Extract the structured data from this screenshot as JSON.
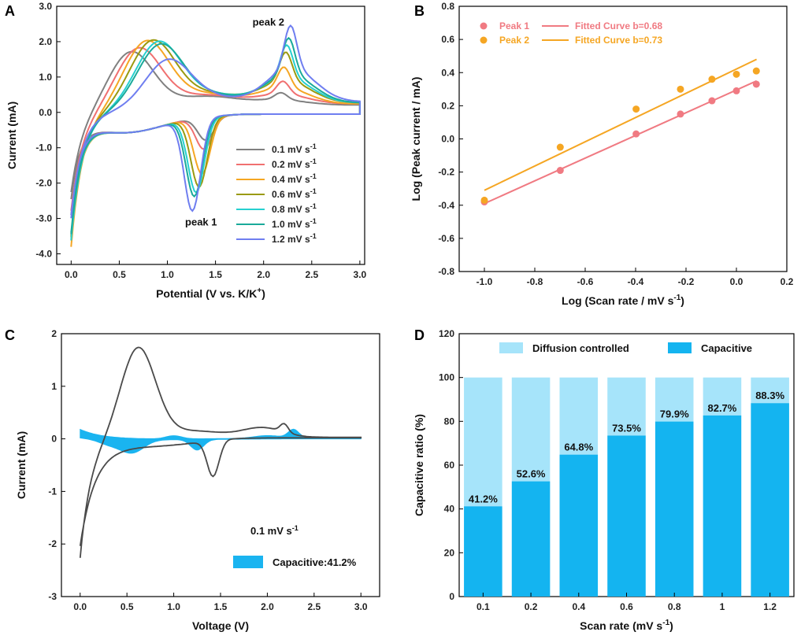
{
  "chart_data": [
    {
      "panel": "A",
      "type": "line",
      "xlabel": "Potential (V vs. K/K",
      "xlabel_sup": "+",
      "xlabel_end": ")",
      "ylabel": "Current (mA)",
      "xlim": [
        -0.15,
        3.05
      ],
      "ylim": [
        -4.3,
        3.0
      ],
      "xticks": [
        0.0,
        0.5,
        1.0,
        1.5,
        2.0,
        2.5,
        3.0
      ],
      "xtick_labels": [
        "0.0",
        "0.5",
        "1.0",
        "1.5",
        "2.0",
        "2.5",
        "3.0"
      ],
      "yticks": [
        -4,
        -3,
        -2,
        -1,
        0,
        1,
        2,
        3
      ],
      "ytick_labels": [
        "-4.0",
        "-3.0",
        "-2.0",
        "-1.0",
        "0.0",
        "1.0",
        "2.0",
        "3.0"
      ],
      "annotations": [
        {
          "text": "peak 2",
          "x": 2.05,
          "y": 2.45
        },
        {
          "text": "peak 1",
          "x": 1.35,
          "y": -3.2
        }
      ],
      "unit_suffix": "mV s",
      "unit_sup": "-1",
      "series": [
        {
          "name": "0.1",
          "color": "#808080",
          "ox": 0.62,
          "oy": 1.65,
          "rx": 1.4,
          "ry": -0.65,
          "ax": 2.18,
          "ay": 0.35,
          "start": -2.3,
          "end": 0.35
        },
        {
          "name": "0.2",
          "color": "#f07070",
          "ox": 0.7,
          "oy": 1.72,
          "rx": 1.38,
          "ry": -0.9,
          "ax": 2.2,
          "ay": 0.65,
          "start": -2.8,
          "end": 0.4
        },
        {
          "name": "0.4",
          "color": "#f5a623",
          "ox": 0.78,
          "oy": 1.88,
          "rx": 1.36,
          "ry": -1.6,
          "ax": 2.21,
          "ay": 1.05,
          "start": -3.8,
          "end": 0.4
        },
        {
          "name": "0.6",
          "color": "#9a9a10",
          "ox": 0.84,
          "oy": 1.85,
          "rx": 1.33,
          "ry": -1.95,
          "ax": 2.23,
          "ay": 1.45,
          "start": -3.5,
          "end": 0.45
        },
        {
          "name": "0.8",
          "color": "#26d0d0",
          "ox": 0.9,
          "oy": 1.78,
          "rx": 1.3,
          "ry": -2.1,
          "ax": 2.24,
          "ay": 1.65,
          "start": -3.6,
          "end": 0.45
        },
        {
          "name": "1.0",
          "color": "#1aaa9a",
          "ox": 0.92,
          "oy": 1.7,
          "rx": 1.28,
          "ry": -2.2,
          "ax": 2.26,
          "ay": 1.85,
          "start": -3.4,
          "end": 0.45
        },
        {
          "name": "1.2",
          "color": "#6f7ef0",
          "ox": 1.0,
          "oy": 1.25,
          "rx": 1.26,
          "ry": -2.6,
          "ax": 2.28,
          "ay": 2.18,
          "start": -2.9,
          "end": 0.5
        }
      ]
    },
    {
      "panel": "B",
      "type": "scatter",
      "xlabel": "Log (Scan rate / mV s",
      "xlabel_sup": "-1",
      "xlabel_end": ")",
      "ylabel": "Log (Peak current / mA)",
      "xlim": [
        -1.1,
        0.2
      ],
      "ylim": [
        -0.8,
        0.8
      ],
      "xticks": [
        -1.0,
        -0.8,
        -0.6,
        -0.4,
        -0.2,
        0.0,
        0.2
      ],
      "xtick_labels": [
        "-1.0",
        "-0.8",
        "-0.6",
        "-0.4",
        "-0.2",
        "0.0",
        "0.2"
      ],
      "yticks": [
        -0.8,
        -0.6,
        -0.4,
        -0.2,
        0.0,
        0.2,
        0.4,
        0.6,
        0.8
      ],
      "ytick_labels": [
        "-0.8",
        "-0.6",
        "-0.4",
        "-0.2",
        "0.0",
        "0.2",
        "0.4",
        "0.6",
        "0.8"
      ],
      "x": [
        -1.0,
        -0.699,
        -0.398,
        -0.222,
        -0.097,
        0.0,
        0.079
      ],
      "series": [
        {
          "name": "Peak 1",
          "fit_label": "Fitted Curve b=0.68",
          "color": "#f07a82",
          "values": [
            -0.38,
            -0.19,
            0.03,
            0.15,
            0.23,
            0.29,
            0.33
          ],
          "fit": [
            [
              -1.0,
              -0.39
            ],
            [
              0.08,
              0.35
            ]
          ]
        },
        {
          "name": "Peak 2",
          "fit_label": "Fitted Curve b=0.73",
          "color": "#f5a623",
          "values": [
            -0.37,
            -0.05,
            0.18,
            0.3,
            0.36,
            0.39,
            0.41
          ],
          "fit": [
            [
              -1.0,
              -0.31
            ],
            [
              0.08,
              0.48
            ]
          ]
        }
      ]
    },
    {
      "panel": "C",
      "type": "area",
      "xlabel": "Voltage (V)",
      "ylabel": "Current (mA)",
      "xlim": [
        -0.2,
        3.2
      ],
      "ylim": [
        -3,
        2
      ],
      "xticks": [
        0.0,
        0.5,
        1.0,
        1.5,
        2.0,
        2.5,
        3.0
      ],
      "xtick_labels": [
        "0.0",
        "0.5",
        "1.0",
        "1.5",
        "2.0",
        "2.5",
        "3.0"
      ],
      "yticks": [
        -3,
        -2,
        -1,
        0,
        1,
        2
      ],
      "ytick_labels": [
        "-3",
        "-2",
        "-1",
        "0",
        "1",
        "2"
      ],
      "scan_label": "0.1 mV s",
      "scan_sup": "-1",
      "legend_label": "Capacitive:41.2%",
      "cv_color": "#4a4a4a",
      "fill_color": "#1ab4f0"
    },
    {
      "panel": "D",
      "type": "bar",
      "xlabel": "Scan rate (mV s",
      "xlabel_sup": "-1",
      "xlabel_end": ")",
      "ylabel": "Capacitive ratio (%)",
      "ylim": [
        0,
        120
      ],
      "yticks": [
        0,
        20,
        40,
        60,
        80,
        100,
        120
      ],
      "ytick_labels": [
        "0",
        "20",
        "40",
        "60",
        "80",
        "100",
        "120"
      ],
      "categories": [
        "0.1",
        "0.2",
        "0.4",
        "0.6",
        "0.8",
        "1",
        "1.2"
      ],
      "series": [
        {
          "name": "Diffusion controlled",
          "color": "#a6e4fa",
          "values": [
            58.8,
            47.4,
            35.2,
            26.5,
            20.1,
            17.3,
            11.7
          ]
        },
        {
          "name": "Capacitive",
          "color": "#14b4f0",
          "values": [
            41.2,
            52.6,
            64.8,
            73.5,
            79.9,
            82.7,
            88.3
          ]
        }
      ],
      "bar_labels": [
        "41.2%",
        "52.6%",
        "64.8%",
        "73.5%",
        "79.9%",
        "82.7%",
        "88.3%"
      ]
    }
  ],
  "panel_labels": [
    "A",
    "B",
    "C",
    "D"
  ]
}
